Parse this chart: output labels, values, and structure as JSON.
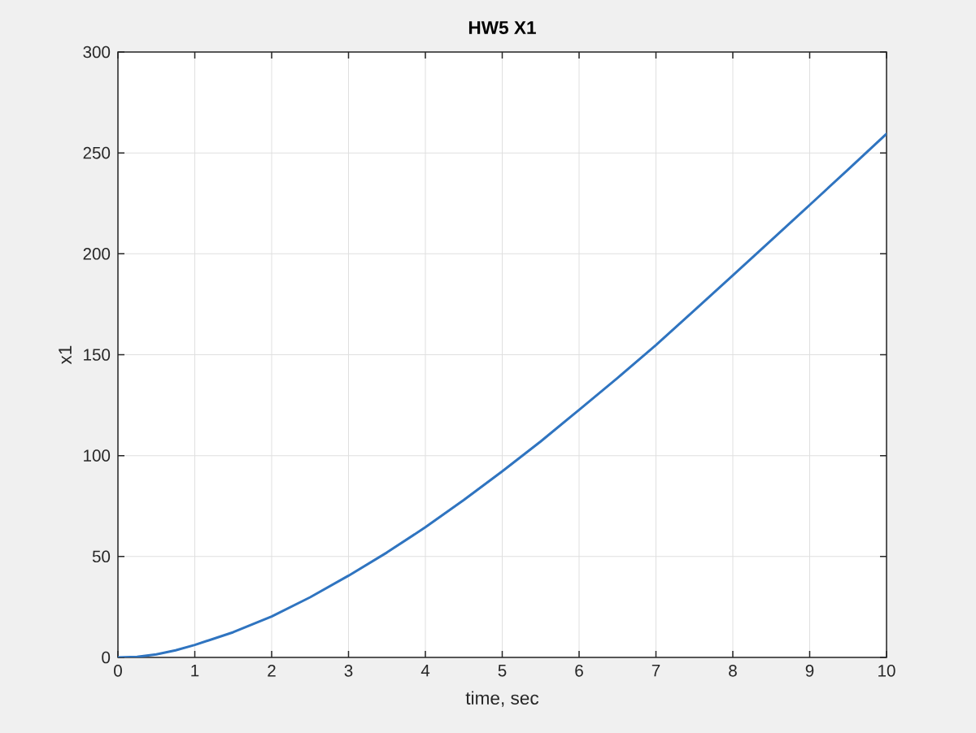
{
  "chart_data": {
    "type": "line",
    "title": "HW5 X1",
    "xlabel": "time, sec",
    "ylabel": "x1",
    "x": [
      0,
      0.25,
      0.5,
      0.75,
      1,
      1.5,
      2,
      2.5,
      3,
      3.5,
      4,
      4.5,
      5,
      5.5,
      6,
      6.5,
      7,
      7.5,
      8,
      8.5,
      9,
      9.5,
      10
    ],
    "series": [
      {
        "color": "#2f74c0",
        "values": [
          0,
          0.3,
          1.5,
          3.5,
          6.2,
          12.5,
          20.3,
          29.8,
          40.5,
          52,
          64.5,
          78,
          92.2,
          107,
          122.7,
          138.5,
          154.8,
          172,
          189.3,
          206.7,
          224.2,
          241.8,
          259.5
        ]
      }
    ],
    "xlim": [
      0,
      10
    ],
    "ylim": [
      0,
      300
    ],
    "xticks": [
      0,
      1,
      2,
      3,
      4,
      5,
      6,
      7,
      8,
      9,
      10
    ],
    "yticks": [
      0,
      50,
      100,
      150,
      200,
      250,
      300
    ],
    "grid": true,
    "marker": "none",
    "line_style": "solid"
  }
}
